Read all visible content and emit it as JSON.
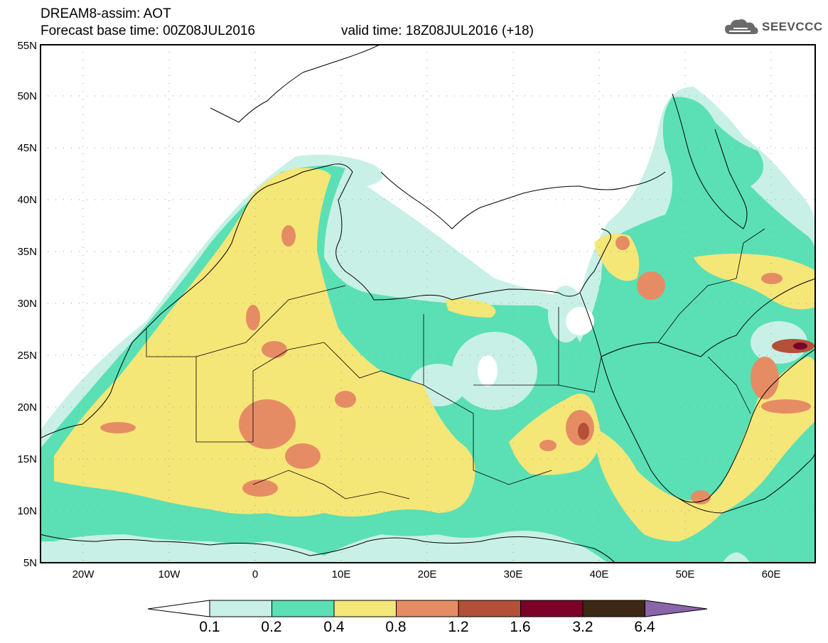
{
  "header": {
    "title": "DREAM8-assim: AOT",
    "forecast": "Forecast base time: 00Z08JUL2016",
    "valid": "valid time: 18Z08JUL2016 (+18)"
  },
  "logo": {
    "text": "SEEVCCC"
  },
  "map": {
    "lon_range": [
      -25,
      65
    ],
    "lat_range": [
      5,
      55
    ],
    "grid": true,
    "lat_labels": [
      "5N",
      "10N",
      "15N",
      "20N",
      "25N",
      "30N",
      "35N",
      "40N",
      "45N",
      "50N",
      "55N"
    ],
    "lon_labels": [
      "20W",
      "10W",
      "0",
      "10E",
      "20E",
      "30E",
      "40E",
      "50E",
      "60E"
    ]
  },
  "colorbar": {
    "labels": [
      "0.1",
      "0.2",
      "0.4",
      "0.8",
      "1.2",
      "1.6",
      "3.2",
      "6.4"
    ],
    "colors": [
      "#ffffff",
      "#c8f0e6",
      "#5ae0b4",
      "#f5e678",
      "#e68c64",
      "#b45038",
      "#7d0028",
      "#3c2814",
      "#8c64aa"
    ]
  }
}
